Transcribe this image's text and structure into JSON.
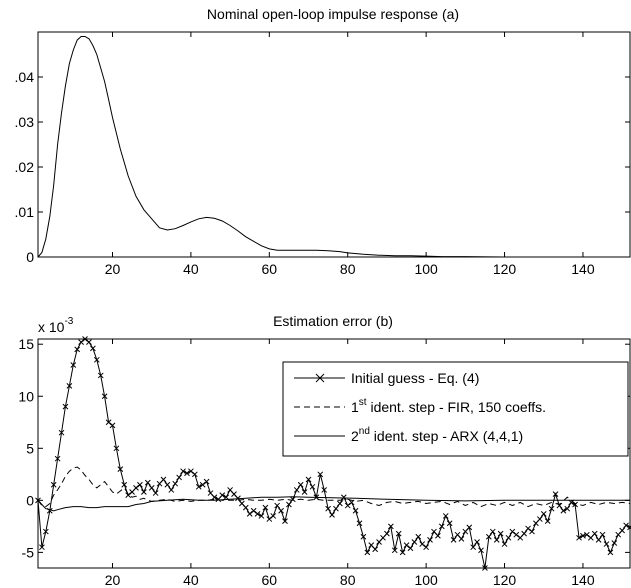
{
  "chart_data": [
    {
      "type": "line",
      "title": "Nominal open-loop impulse response (a)",
      "xlabel": "",
      "ylabel": "",
      "xlim": [
        1,
        152
      ],
      "ylim": [
        0,
        0.05
      ],
      "xticks": [
        20,
        40,
        60,
        80,
        100,
        120,
        140
      ],
      "xtick_labels": [
        "20",
        "40",
        "60",
        "80",
        "100",
        "120",
        "140"
      ],
      "yticks": [
        0,
        0.01,
        0.02,
        0.03,
        0.04
      ],
      "ytick_labels": [
        "0",
        ".01",
        ".02",
        ".03",
        ".04"
      ],
      "grid": false,
      "legend": null,
      "series": [
        {
          "x": [
            1,
            2,
            3,
            4,
            5,
            6,
            7,
            8,
            9,
            10,
            11,
            12,
            13,
            14,
            15,
            16,
            17,
            18,
            19,
            20,
            22,
            24,
            26,
            28,
            30,
            32,
            34,
            36,
            38,
            40,
            42,
            44,
            46,
            48,
            50,
            52,
            54,
            56,
            58,
            60,
            62,
            66,
            70,
            72,
            75,
            78,
            80,
            84,
            88,
            92,
            96,
            100,
            104,
            110,
            120,
            130,
            140,
            150,
            152
          ],
          "values": [
            0.0,
            0.001,
            0.004,
            0.009,
            0.016,
            0.025,
            0.032,
            0.038,
            0.043,
            0.046,
            0.0482,
            0.049,
            0.049,
            0.0485,
            0.047,
            0.045,
            0.042,
            0.039,
            0.035,
            0.031,
            0.024,
            0.018,
            0.0135,
            0.0105,
            0.0085,
            0.0065,
            0.006,
            0.0063,
            0.007,
            0.0078,
            0.0085,
            0.0088,
            0.0086,
            0.008,
            0.007,
            0.0058,
            0.0045,
            0.0035,
            0.0025,
            0.0018,
            0.0015,
            0.0015,
            0.0015,
            0.0015,
            0.0014,
            0.0012,
            0.0009,
            0.0006,
            0.0004,
            0.0003,
            0.0003,
            0.0002,
            0.0001,
            0.0001,
            0.0,
            0.0,
            0.0,
            0.0,
            0.0
          ]
        }
      ]
    },
    {
      "type": "line",
      "title": "Estimation error (b)",
      "xlabel": "",
      "ylabel": "",
      "scale_label": "x 10-3",
      "scale_base": "x 10",
      "scale_exponent": "-3",
      "xlim": [
        1,
        152
      ],
      "ylim": [
        -6.5,
        15.5
      ],
      "xticks": [
        20,
        40,
        60,
        80,
        100,
        120,
        140
      ],
      "xtick_labels": [
        "20",
        "40",
        "60",
        "80",
        "100",
        "120",
        "140"
      ],
      "yticks": [
        -5,
        0,
        5,
        10,
        15
      ],
      "ytick_labels": [
        "-5",
        "0",
        "5",
        "10",
        "15"
      ],
      "grid": false,
      "legend": "top-right",
      "series": [
        {
          "name": "Initial guess - Eq. (4)",
          "style": "solid-x-marker",
          "x": [
            1,
            2,
            3,
            4,
            5,
            6,
            7,
            8,
            9,
            10,
            11,
            12,
            13,
            14,
            15,
            16,
            17,
            18,
            19,
            20,
            21,
            22,
            23,
            24,
            25,
            26,
            27,
            28,
            29,
            30,
            31,
            32,
            33,
            34,
            35,
            36,
            37,
            38,
            39,
            40,
            41,
            42,
            43,
            44,
            45,
            46,
            47,
            48,
            49,
            50,
            51,
            52,
            53,
            54,
            55,
            56,
            57,
            58,
            59,
            60,
            61,
            62,
            63,
            64,
            65,
            66,
            67,
            68,
            69,
            70,
            71,
            72,
            73,
            74,
            75,
            76,
            77,
            78,
            79,
            80,
            81,
            82,
            83,
            84,
            85,
            86,
            87,
            88,
            89,
            90,
            91,
            92,
            93,
            94,
            95,
            96,
            97,
            98,
            99,
            100,
            101,
            102,
            103,
            104,
            105,
            106,
            107,
            108,
            109,
            110,
            111,
            112,
            113,
            114,
            115,
            116,
            117,
            118,
            119,
            120,
            121,
            122,
            123,
            124,
            125,
            126,
            127,
            128,
            129,
            130,
            131,
            132,
            133,
            134,
            135,
            136,
            137,
            138,
            139,
            140,
            141,
            142,
            143,
            144,
            145,
            146,
            147,
            148,
            149,
            150,
            151,
            152
          ],
          "values": [
            0.0,
            -4.5,
            -3.0,
            -1.0,
            1.5,
            4.0,
            6.5,
            9.0,
            11.0,
            13.0,
            14.5,
            15.2,
            15.5,
            15.2,
            14.6,
            13.5,
            12.0,
            10.0,
            7.5,
            7.2,
            5.0,
            3.0,
            1.5,
            0.5,
            0.8,
            1.2,
            1.5,
            0.8,
            1.7,
            1.2,
            0.7,
            1.6,
            2.0,
            1.5,
            1.0,
            1.6,
            2.2,
            2.8,
            2.6,
            2.8,
            2.5,
            1.3,
            1.5,
            1.8,
            0.7,
            0.3,
            0.1,
            0.5,
            0.3,
            1.0,
            0.6,
            0.2,
            -0.3,
            -0.7,
            -1.3,
            -1.0,
            -1.3,
            -1.5,
            -0.7,
            -1.8,
            -1.5,
            -0.5,
            -1.0,
            -2.0,
            -0.4,
            0.1,
            1.0,
            1.5,
            0.8,
            2.0,
            1.3,
            0.3,
            2.5,
            1.0,
            -0.8,
            -1.4,
            -0.8,
            -0.3,
            0.3,
            -0.5,
            -0.2,
            -1.0,
            -2.2,
            -3.5,
            -5.0,
            -4.3,
            -4.7,
            -4.0,
            -3.6,
            -3.2,
            -2.5,
            -4.8,
            -3.2,
            -5.0,
            -4.3,
            -4.6,
            -4.0,
            -3.5,
            -4.2,
            -4.5,
            -3.8,
            -3.0,
            -3.4,
            -2.5,
            -1.5,
            -2.2,
            -3.8,
            -3.3,
            -3.7,
            -3.0,
            -2.6,
            -4.5,
            -4.0,
            -4.8,
            -6.5,
            -3.5,
            -3.0,
            -3.8,
            -3.2,
            -4.2,
            -3.6,
            -3.0,
            -3.3,
            -3.6,
            -3.2,
            -2.7,
            -3.0,
            -2.2,
            -1.8,
            -1.3,
            -2.0,
            -0.8,
            0.6,
            -0.5,
            -1.0,
            -0.8,
            -0.2,
            -0.4,
            -3.6,
            -3.4,
            -3.3,
            -3.6,
            -3.2,
            -3.8,
            -3.3,
            -4.2,
            -5.0,
            -4.1,
            -3.3,
            -2.9,
            -2.4,
            -2.6
          ]
        },
        {
          "name": "1st ident. step - FIR, 150 coeffs.",
          "label_base": "1",
          "label_sup": "st",
          "label_rest": " ident. step - FIR, 150 coeffs.",
          "style": "dashed",
          "x": [
            1,
            2,
            3,
            4,
            5,
            6,
            7,
            8,
            9,
            10,
            11,
            12,
            13,
            14,
            15,
            16,
            17,
            18,
            19,
            20,
            21,
            22,
            23,
            24,
            25,
            26,
            27,
            28,
            29,
            30,
            32,
            34,
            36,
            38,
            40,
            42,
            44,
            46,
            48,
            50,
            52,
            54,
            56,
            58,
            60,
            62,
            64,
            66,
            68,
            70,
            72,
            74,
            76,
            78,
            80,
            82,
            84,
            86,
            88,
            90,
            92,
            94,
            96,
            98,
            100,
            102,
            104,
            106,
            108,
            110,
            112,
            114,
            116,
            118,
            120,
            122,
            124,
            126,
            128,
            130,
            132,
            134,
            136,
            138,
            140,
            142,
            144,
            146,
            148,
            150,
            152
          ],
          "values": [
            0.0,
            -0.5,
            -0.6,
            -0.3,
            0.5,
            1.0,
            1.6,
            2.3,
            2.8,
            3.1,
            3.2,
            2.9,
            2.4,
            2.0,
            1.5,
            1.2,
            1.5,
            1.8,
            1.3,
            0.8,
            0.6,
            0.9,
            1.2,
            0.6,
            0.3,
            0.4,
            0.1,
            0.2,
            0.0,
            -0.1,
            0.0,
            0.1,
            -0.1,
            0.0,
            -0.1,
            0.0,
            0.0,
            0.1,
            0.0,
            0.0,
            0.0,
            0.1,
            0.0,
            0.0,
            0.1,
            0.0,
            0.1,
            0.0,
            0.1,
            0.0,
            0.1,
            0.0,
            0.0,
            0.0,
            0.1,
            -0.1,
            0.0,
            -0.3,
            -0.5,
            -0.2,
            -0.1,
            -0.3,
            -0.2,
            -0.1,
            -0.3,
            -0.2,
            -0.1,
            -0.4,
            -0.1,
            -0.5,
            -0.2,
            -0.6,
            -0.3,
            -0.5,
            -0.2,
            -0.5,
            -0.2,
            -0.6,
            -0.3,
            -0.5,
            -0.2,
            -0.4,
            0.3,
            -0.3,
            -0.5,
            -0.2,
            -0.4,
            -0.2,
            -0.3,
            -0.2,
            -0.3
          ]
        },
        {
          "name": "2nd ident. step - ARX (4,4,1)",
          "label_base": "2",
          "label_sup": "nd",
          "label_rest": " ident. step - ARX (4,4,1)",
          "style": "solid",
          "x": [
            1,
            2,
            3,
            4,
            5,
            6,
            8,
            10,
            12,
            14,
            16,
            18,
            20,
            22,
            24,
            26,
            28,
            30,
            34,
            38,
            42,
            46,
            50,
            54,
            58,
            62,
            66,
            70,
            76,
            82,
            90,
            100,
            110,
            120,
            130,
            140,
            152
          ],
          "values": [
            0.0,
            -0.4,
            -0.8,
            -0.9,
            -1.0,
            -0.9,
            -0.7,
            -0.6,
            -0.6,
            -0.7,
            -0.7,
            -0.6,
            -0.6,
            -0.6,
            -0.6,
            -0.4,
            -0.3,
            -0.1,
            0.0,
            0.1,
            0.0,
            0.0,
            0.1,
            0.2,
            0.3,
            0.3,
            0.35,
            0.3,
            0.25,
            0.2,
            0.1,
            0.0,
            -0.05,
            0.0,
            0.0,
            0.0,
            0.0
          ]
        }
      ]
    }
  ]
}
